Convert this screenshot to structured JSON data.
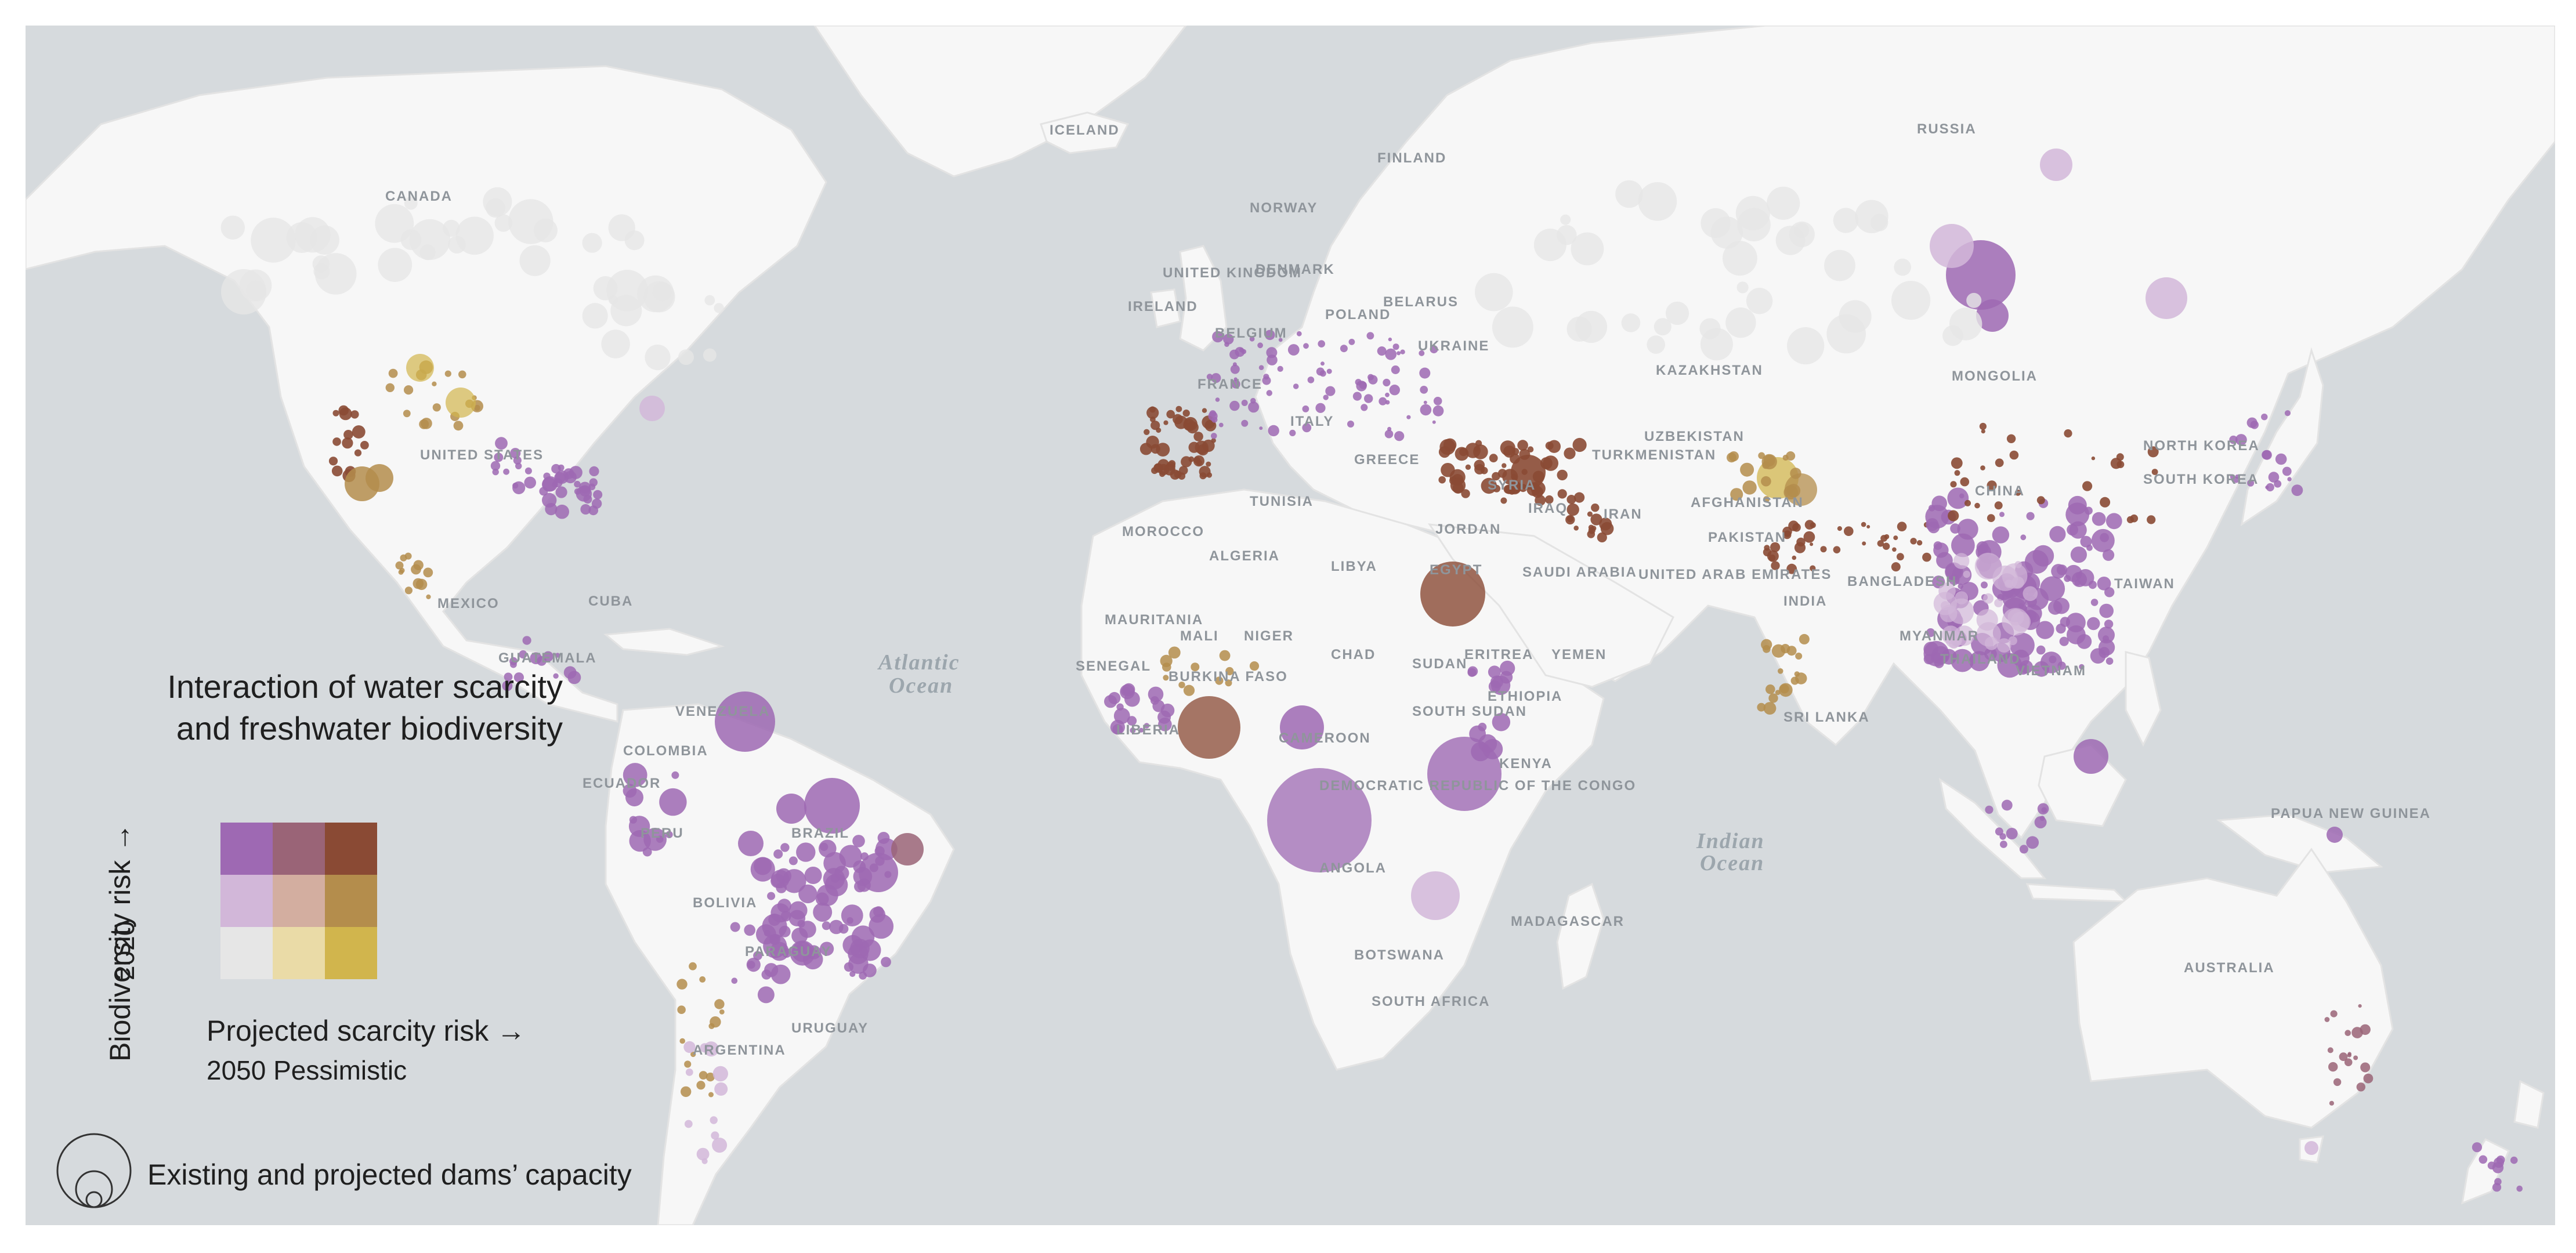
{
  "map": {
    "countries": [
      "CANADA",
      "UNITED STATES",
      "MEXICO",
      "CUBA",
      "GUATEMALA",
      "VENEZUELA",
      "COLOMBIA",
      "ECUADOR",
      "PERU",
      "BRAZIL",
      "BOLIVIA",
      "PARAGUAY",
      "URUGUAY",
      "ARGENTINA",
      "ICELAND",
      "FINLAND",
      "NORWAY",
      "UNITED KINGDOM",
      "IRELAND",
      "DENMARK",
      "BELARUS",
      "POLAND",
      "BELGIUM",
      "FRANCE",
      "UKRAINE",
      "ITALY",
      "GREECE",
      "TUNISIA",
      "MOROCCO",
      "ALGERIA",
      "LIBYA",
      "EGYPT",
      "SAUDI ARABIA",
      "JORDAN",
      "SYRIA",
      "IRAQ",
      "IRAN",
      "UNITED ARAB EMIRATES",
      "YEMEN",
      "ERITREA",
      "ETHIOPIA",
      "SUDAN",
      "SOUTH SUDAN",
      "KENYA",
      "CHAD",
      "NIGER",
      "MALI",
      "MAURITANIA",
      "SENEGAL",
      "BURKINA FASO",
      "LIBERIA",
      "CAMEROON",
      "DEMOCRATIC REPUBLIC OF THE CONGO",
      "ANGOLA",
      "BOTSWANA",
      "SOUTH AFRICA",
      "MADAGASCAR",
      "RUSSIA",
      "KAZAKHSTAN",
      "UZBEKISTAN",
      "TURKMENISTAN",
      "AFGHANISTAN",
      "PAKISTAN",
      "INDIA",
      "BANGLADESH",
      "SRI LANKA",
      "CHINA",
      "MONGOLIA",
      "NORTH KOREA",
      "SOUTH KOREA",
      "TAIWAN",
      "MYANMAR",
      "THAILAND",
      "VIETNAM",
      "PAPUA NEW GUINEA",
      "AUSTRALIA"
    ],
    "oceans": [
      "Atlantic Ocean",
      "Indian Ocean"
    ]
  },
  "legend": {
    "title_line1": "Interaction of water scarcity",
    "title_line2": "and freshwater biodiversity",
    "y_label": "Biodiversity risk",
    "y_arrow": "→",
    "y_sub": "2020",
    "x_label": "Projected scarcity risk →",
    "x_sub": "2050 Pessimistic",
    "size_label": "Existing and projected dams’ capacity",
    "bivariate_colors": [
      [
        "#9e69b3",
        "#9a6477",
        "#8a4a34"
      ],
      [
        "#d2b7d9",
        "#d3aea0",
        "#b48d4c"
      ],
      [
        "#e6e6e6",
        "#eadba7",
        "#d1b54d"
      ]
    ]
  },
  "colors": {
    "ocean": "#d6dadd",
    "land": "#f7f7f7",
    "border": "#e3e3e3"
  }
}
